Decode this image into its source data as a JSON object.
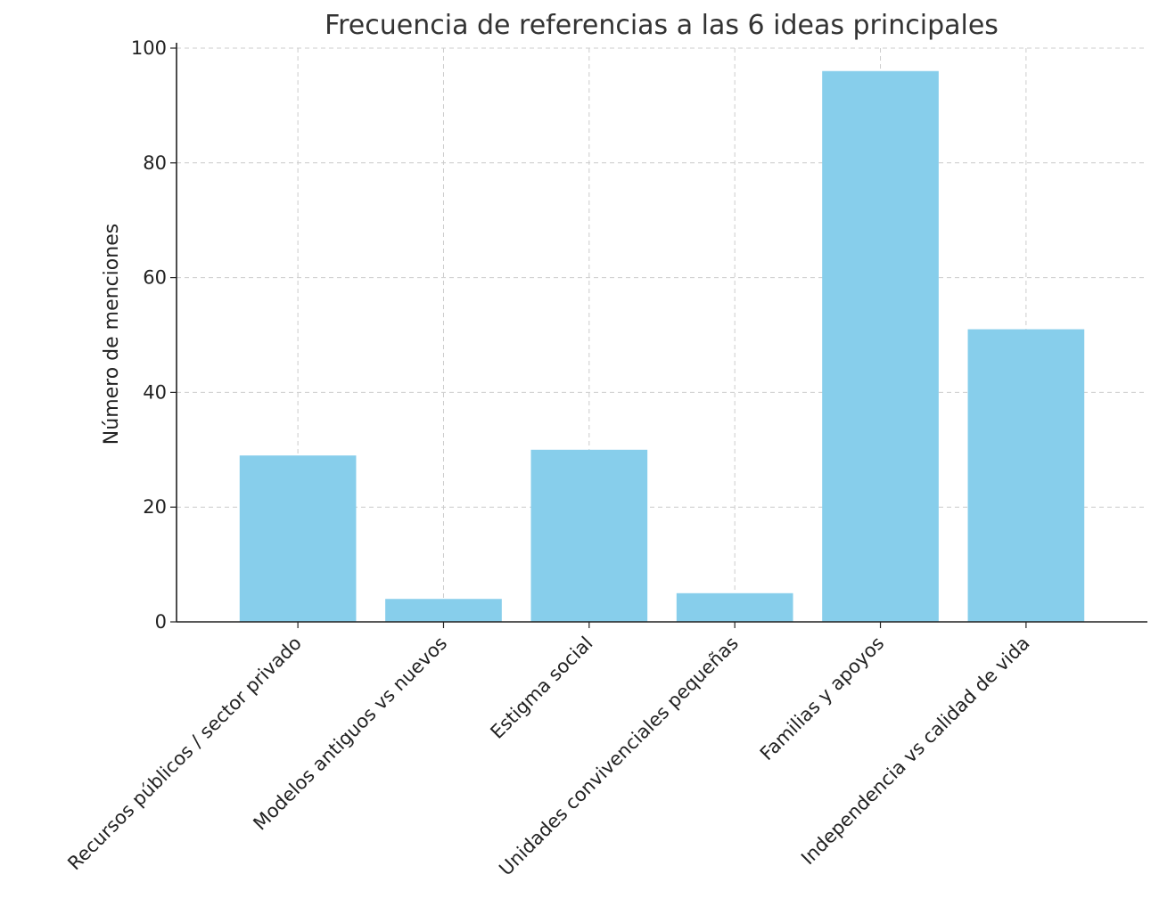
{
  "chart_data": {
    "type": "bar",
    "title": "Frecuencia de referencias a las 6 ideas principales",
    "xlabel": "",
    "ylabel": "Número de menciones",
    "categories": [
      "Recursos públicos / sector privado",
      "Modelos antiguos vs nuevos",
      "Estigma social",
      "Unidades convivenciales pequeñas",
      "Familias y apoyos",
      "Independencia vs calidad de vida"
    ],
    "values": [
      29,
      4,
      30,
      5,
      96,
      51
    ],
    "ylim": [
      0,
      100
    ],
    "yticks": [
      "0",
      "20",
      "40",
      "60",
      "80",
      "100"
    ],
    "grid": true,
    "bar_color": "#87CEEB",
    "legend": "none"
  }
}
